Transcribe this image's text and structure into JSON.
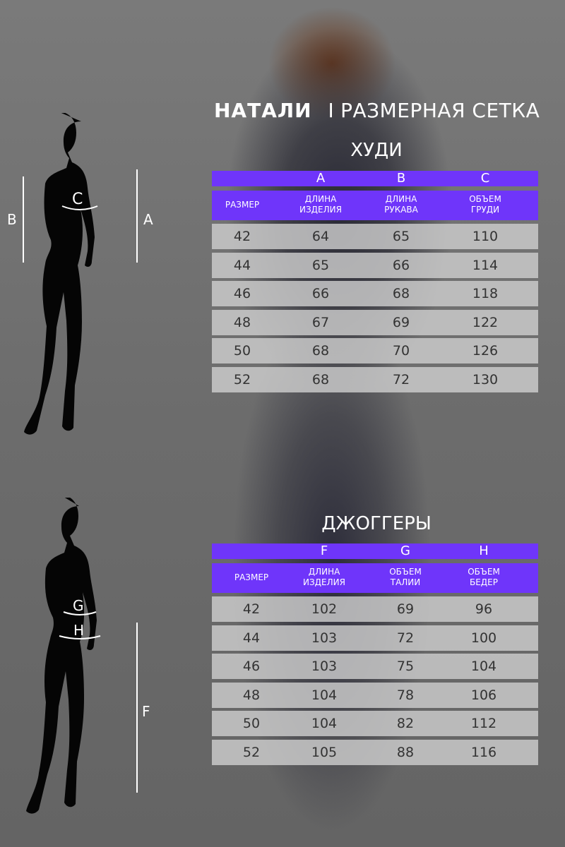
{
  "header": {
    "brand": "НАТАЛИ",
    "separator": "I",
    "title": "РАЗМЕРНАЯ СЕТКА"
  },
  "colors": {
    "accent": "#6f35fa",
    "row": "#cdcdcd"
  },
  "hoodie": {
    "title": "ХУДИ",
    "letters": [
      "",
      "A",
      "B",
      "C"
    ],
    "columns": [
      "РАЗМЕР",
      [
        "ДЛИНА",
        "ИЗДЕЛИЯ"
      ],
      [
        "ДЛИНА",
        "РУКАВА"
      ],
      [
        "ОБЪЕМ",
        "ГРУДИ"
      ]
    ],
    "rows": [
      [
        "42",
        "64",
        "65",
        "110"
      ],
      [
        "44",
        "65",
        "66",
        "114"
      ],
      [
        "46",
        "66",
        "68",
        "118"
      ],
      [
        "48",
        "67",
        "69",
        "122"
      ],
      [
        "50",
        "68",
        "70",
        "126"
      ],
      [
        "52",
        "68",
        "72",
        "130"
      ]
    ],
    "figure_labels": {
      "left": "B",
      "right": "A",
      "chest": "C"
    }
  },
  "joggers": {
    "title": "ДЖОГГЕРЫ",
    "letters": [
      "",
      "F",
      "G",
      "H"
    ],
    "columns": [
      "РАЗМЕР",
      [
        "ДЛИНА",
        "ИЗДЕЛИЯ"
      ],
      [
        "ОБЪЕМ",
        "ТАЛИИ"
      ],
      [
        "ОБЪЕМ",
        "БЕДЕР"
      ]
    ],
    "rows": [
      [
        "42",
        "102",
        "69",
        "96"
      ],
      [
        "44",
        "103",
        "72",
        "100"
      ],
      [
        "46",
        "103",
        "75",
        "104"
      ],
      [
        "48",
        "104",
        "78",
        "106"
      ],
      [
        "50",
        "104",
        "82",
        "112"
      ],
      [
        "52",
        "105",
        "88",
        "116"
      ]
    ],
    "figure_labels": {
      "waist": "G",
      "hips": "H",
      "length": "F"
    }
  }
}
